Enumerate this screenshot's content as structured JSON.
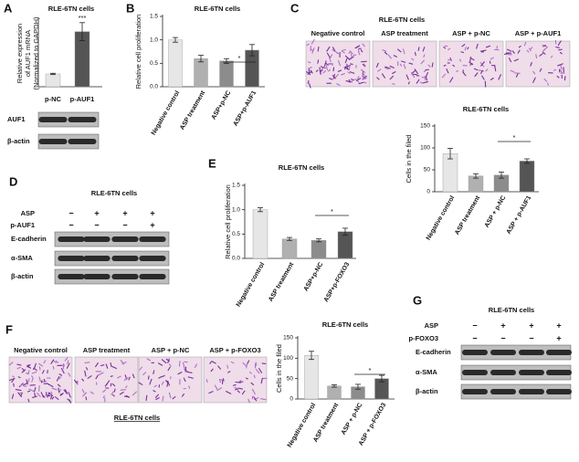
{
  "labels": [
    "A",
    "B",
    "C",
    "D",
    "E",
    "F",
    "G"
  ],
  "chart_data": [
    {
      "type": "bar",
      "title": "RLE-6TN cells",
      "ylabel": [
        "Relative expression",
        "of AUF1 mRNA",
        "(Normalized to GAPDH)"
      ],
      "categories": [
        "p-NC",
        "p-AUF1"
      ],
      "values": [
        1.0,
        4.3
      ],
      "errors": [
        0.05,
        0.7
      ],
      "colors": [
        "#e6e6e6",
        "#555555"
      ],
      "ylim": [
        0,
        5.2
      ],
      "annotation": "***"
    },
    {
      "type": "bar",
      "title": "RLE-6TN cells",
      "ylabel": "Relative cell proliferation",
      "categories": [
        "Negative control",
        "ASP treatment",
        "ASP+p-NC",
        "ASP+p-AUF1"
      ],
      "values": [
        1.0,
        0.6,
        0.55,
        0.78
      ],
      "errors": [
        0.05,
        0.07,
        0.05,
        0.12
      ],
      "colors": [
        "#e6e6e6",
        "#b0b0b0",
        "#8c8c8c",
        "#555555"
      ],
      "ylim": [
        0,
        1.5
      ],
      "yticks": [
        {
          "value": 0,
          "label": "0.0"
        },
        {
          "value": 0.5,
          "label": "0.5"
        },
        {
          "value": 1,
          "label": "1.0"
        },
        {
          "value": 1.5,
          "label": "1.5"
        }
      ],
      "annotation": "*"
    },
    {
      "type": "bar",
      "title": "RLE-6TN cells",
      "ylabel": "Cells in the filed",
      "categories": [
        "Negative control",
        "ASP treatment",
        "ASP + p-NC",
        "ASP + p-AUF1"
      ],
      "values": [
        87,
        36,
        38,
        70
      ],
      "errors": [
        12,
        5,
        7,
        5
      ],
      "colors": [
        "#e6e6e6",
        "#b0b0b0",
        "#8c8c8c",
        "#555555"
      ],
      "ylim": [
        0,
        150
      ],
      "yticks": [
        0,
        50,
        100,
        150
      ],
      "annotation": "*"
    },
    {
      "type": "bar",
      "title": "RLE-6TN cells",
      "ylabel": "Relative cell proliferation",
      "categories": [
        "Negative control",
        "ASP treatment",
        "ASP+p-NC",
        "ASP+p-FOXO3"
      ],
      "values": [
        1.0,
        0.4,
        0.37,
        0.55
      ],
      "errors": [
        0.04,
        0.03,
        0.03,
        0.07
      ],
      "colors": [
        "#e6e6e6",
        "#b0b0b0",
        "#8c8c8c",
        "#555555"
      ],
      "ylim": [
        0,
        1.5
      ],
      "yticks": [
        {
          "value": 0,
          "label": "0.0"
        },
        {
          "value": 0.5,
          "label": "0.5"
        },
        {
          "value": 1,
          "label": "1.0"
        },
        {
          "value": 1.5,
          "label": "1.5"
        }
      ],
      "annotation": "*"
    },
    {
      "type": "bar",
      "title": "RLE-6TN cells",
      "ylabel": "Cells in the filed",
      "categories": [
        "Negative control",
        "ASP treatment",
        "ASP + p-NC",
        "ASP + p-FOXO3"
      ],
      "values": [
        107,
        32,
        30,
        50
      ],
      "errors": [
        10,
        3,
        6,
        8
      ],
      "colors": [
        "#e6e6e6",
        "#b0b0b0",
        "#8c8c8c",
        "#555555"
      ],
      "ylim": [
        0,
        150
      ],
      "yticks": [
        0,
        50,
        100,
        150
      ],
      "annotation": "*"
    }
  ],
  "blots": [
    {
      "rows": [
        "AUF1",
        "β-actin"
      ]
    },
    {
      "title": "RLE-6TN cells",
      "treatments": [
        {
          "name": "ASP",
          "signs": [
            "−",
            "+",
            "+",
            "+"
          ]
        },
        {
          "name": "p-AUF1",
          "signs": [
            "−",
            "−",
            "−",
            "+"
          ]
        }
      ],
      "rows": [
        "E-cadherin",
        "α-SMA",
        "β-actin"
      ]
    },
    {
      "title": "RLE-6TN cells",
      "treatments": [
        {
          "name": "ASP",
          "signs": [
            "−",
            "+",
            "+",
            "+"
          ]
        },
        {
          "name": "p-FOXO3",
          "signs": [
            "−",
            "−",
            "−",
            "+"
          ]
        }
      ],
      "rows": [
        "E-cadherin",
        "α-SMA",
        "β-actin"
      ]
    }
  ],
  "images": [
    {
      "title": "RLE-6TN cells",
      "labels": [
        "Negative control",
        "ASP treatment",
        "ASP + p-NC",
        "ASP + p-AUF1"
      ]
    },
    {
      "labels": [
        "Negative control",
        "ASP treatment",
        "ASP + p-NC",
        "ASP + p-FOXO3"
      ],
      "caption": "RLE-6TN cells"
    }
  ]
}
